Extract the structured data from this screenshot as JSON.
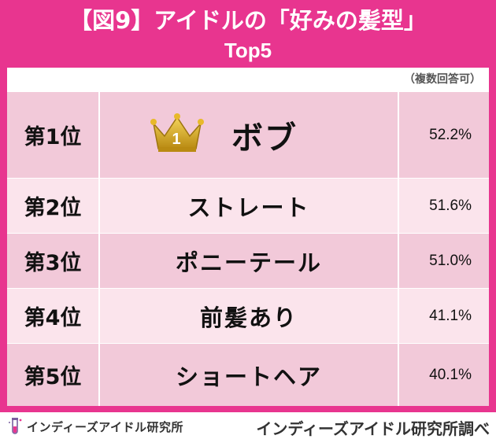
{
  "header": {
    "title": "【図9】アイドルの「好みの髪型」",
    "subtitle": "Top5",
    "note": "（複数回答可）"
  },
  "chart_data": {
    "type": "table",
    "title": "【図9】アイドルの「好みの髪型」",
    "subtitle": "Top5",
    "note": "（複数回答可）",
    "rows": [
      {
        "rank": "第1位",
        "name": "ボブ",
        "value": 52.2,
        "label": "52.2%"
      },
      {
        "rank": "第2位",
        "name": "ストレート",
        "value": 51.6,
        "label": "51.6%"
      },
      {
        "rank": "第3位",
        "name": "ポニーテール",
        "value": 51.0,
        "label": "51.0%"
      },
      {
        "rank": "第4位",
        "name": "前髪あり",
        "value": 41.1,
        "label": "41.1%"
      },
      {
        "rank": "第5位",
        "name": "ショートヘア",
        "value": 40.1,
        "label": "40.1%"
      }
    ]
  },
  "crown": {
    "icon": "crown-icon",
    "number": "1",
    "color": "#c9a227"
  },
  "colors": {
    "frame": "#e8358f",
    "row_odd": "#f2c9d9",
    "row_even": "#fbe4ec"
  },
  "footer": {
    "logo_icon": "test-tube-icon",
    "logo_text": "インディーズアイドル研究所",
    "credit": "インディーズアイドル研究所調べ"
  }
}
